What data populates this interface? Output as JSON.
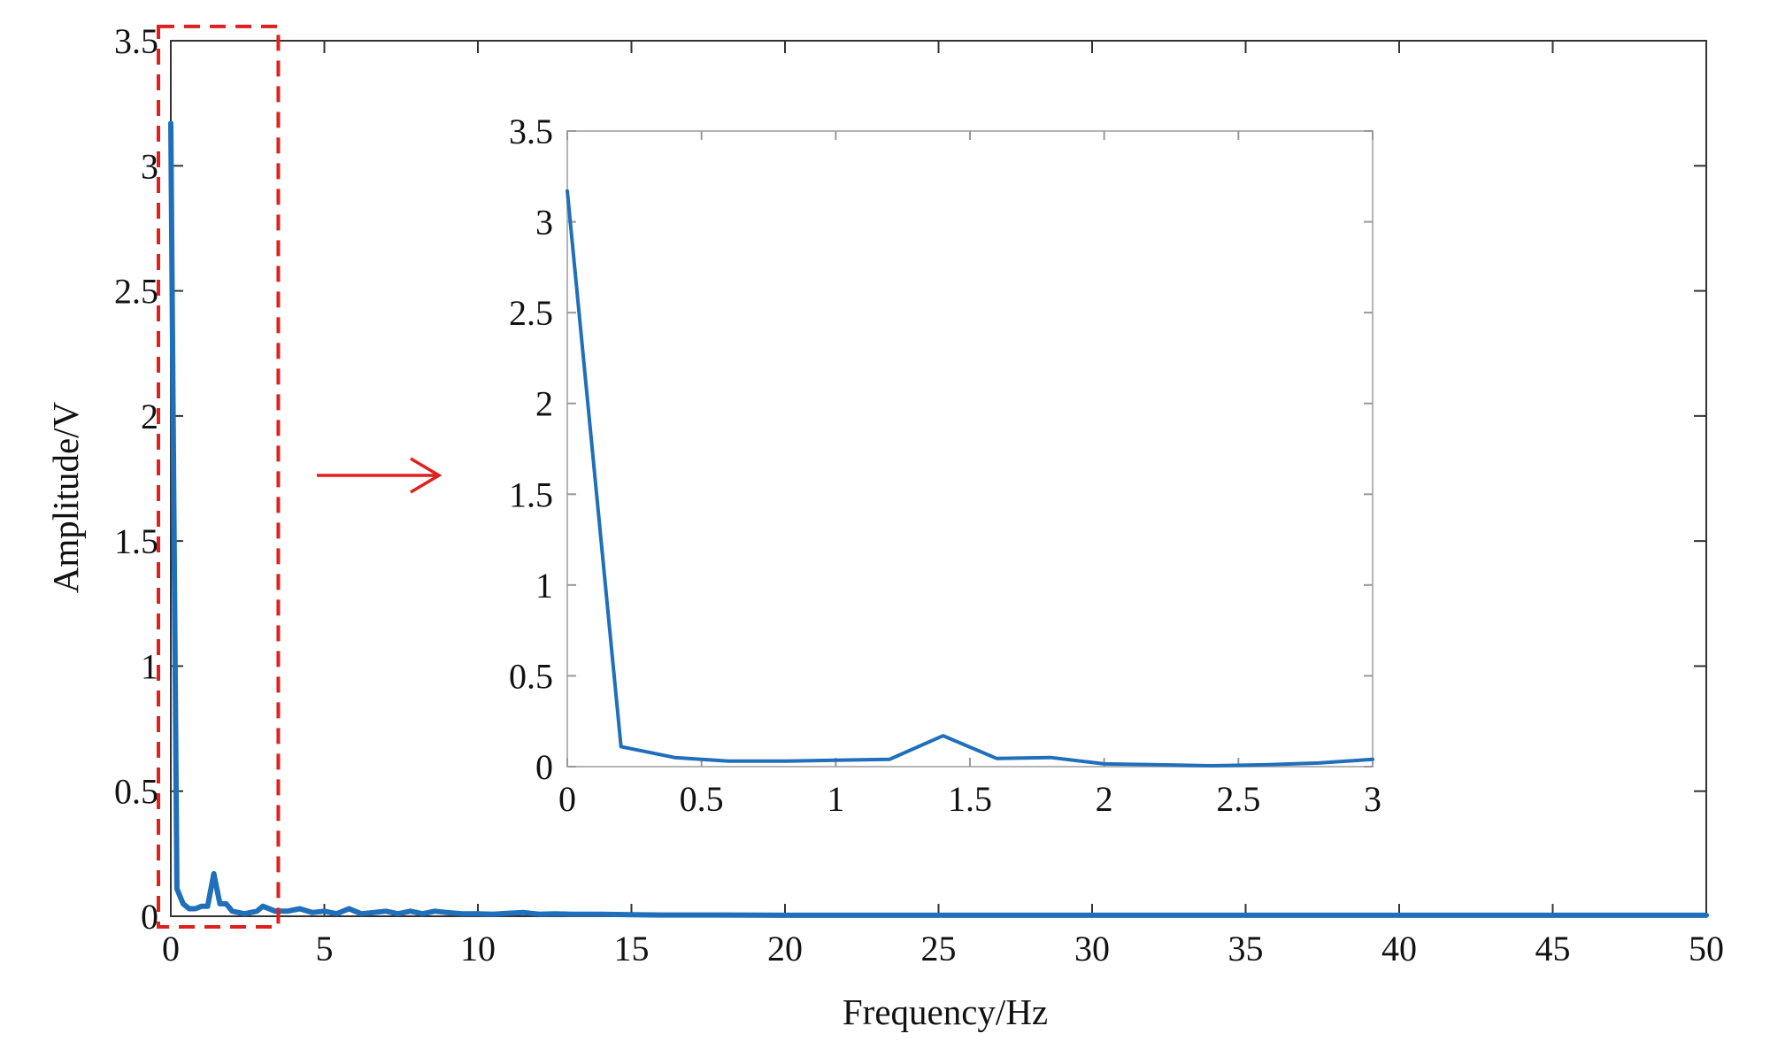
{
  "chart_data": [
    {
      "id": "main",
      "type": "line",
      "xlabel": "Frequency/Hz",
      "ylabel": "Amplitude/V",
      "xlim": [
        0,
        50
      ],
      "ylim": [
        0,
        3.5
      ],
      "xticks": [
        0,
        5,
        10,
        15,
        20,
        25,
        30,
        35,
        40,
        45,
        50
      ],
      "xtick_labels": [
        "0",
        "5",
        "10",
        "15",
        "20",
        "25",
        "30",
        "35",
        "40",
        "45",
        "50"
      ],
      "yticks": [
        0,
        0.5,
        1,
        1.5,
        2,
        2.5,
        3,
        3.5
      ],
      "ytick_labels": [
        "0",
        "0.5",
        "1",
        "1.5",
        "2",
        "2.5",
        "3",
        "3.5"
      ],
      "grid": false,
      "highlight_region": {
        "x": [
          0,
          3.5
        ],
        "y": [
          0,
          3.55
        ],
        "style": "dashed",
        "color": "#e0201e"
      },
      "series": [
        {
          "color": "#1f6fba",
          "x": [
            0,
            0.2,
            0.4,
            0.6,
            0.8,
            1.0,
            1.2,
            1.4,
            1.6,
            1.8,
            2.0,
            2.4,
            2.8,
            3.0,
            3.4,
            3.8,
            4.2,
            4.6,
            5.0,
            5.4,
            5.8,
            6.2,
            6.6,
            7.0,
            7.4,
            7.8,
            8.2,
            8.6,
            9.0,
            9.5,
            10.0,
            10.5,
            11.0,
            11.5,
            12.0,
            12.5,
            13.0,
            14.0,
            15.0,
            16.0,
            18.0,
            20.0,
            25.0,
            30.0,
            35.0,
            40.0,
            45.0,
            50.0
          ],
          "y": [
            3.17,
            0.11,
            0.05,
            0.03,
            0.03,
            0.04,
            0.04,
            0.17,
            0.05,
            0.05,
            0.02,
            0.01,
            0.02,
            0.04,
            0.02,
            0.02,
            0.03,
            0.015,
            0.02,
            0.01,
            0.03,
            0.01,
            0.015,
            0.02,
            0.01,
            0.02,
            0.01,
            0.02,
            0.015,
            0.01,
            0.01,
            0.008,
            0.012,
            0.015,
            0.008,
            0.01,
            0.008,
            0.008,
            0.006,
            0.005,
            0.005,
            0.004,
            0.004,
            0.004,
            0.004,
            0.004,
            0.004,
            0.004
          ]
        }
      ]
    },
    {
      "id": "inset",
      "type": "line",
      "xlabel": "",
      "ylabel": "",
      "xlim": [
        0,
        3
      ],
      "ylim": [
        0,
        3.5
      ],
      "xticks": [
        0,
        0.5,
        1,
        1.5,
        2,
        2.5,
        3
      ],
      "xtick_labels": [
        "0",
        "0.5",
        "1",
        "1.5",
        "2",
        "2.5",
        "3"
      ],
      "yticks": [
        0,
        0.5,
        1,
        1.5,
        2,
        2.5,
        3,
        3.5
      ],
      "ytick_labels": [
        "0",
        "0.5",
        "1",
        "1.5",
        "2",
        "2.5",
        "3",
        "3.5"
      ],
      "grid": false,
      "series": [
        {
          "color": "#1f6fba",
          "x": [
            0,
            0.2,
            0.4,
            0.6,
            0.8,
            1.0,
            1.2,
            1.4,
            1.6,
            1.8,
            2.0,
            2.2,
            2.4,
            2.6,
            2.8,
            3.0
          ],
          "y": [
            3.17,
            0.11,
            0.05,
            0.03,
            0.03,
            0.035,
            0.04,
            0.17,
            0.045,
            0.05,
            0.015,
            0.01,
            0.005,
            0.01,
            0.02,
            0.04
          ]
        }
      ]
    }
  ]
}
